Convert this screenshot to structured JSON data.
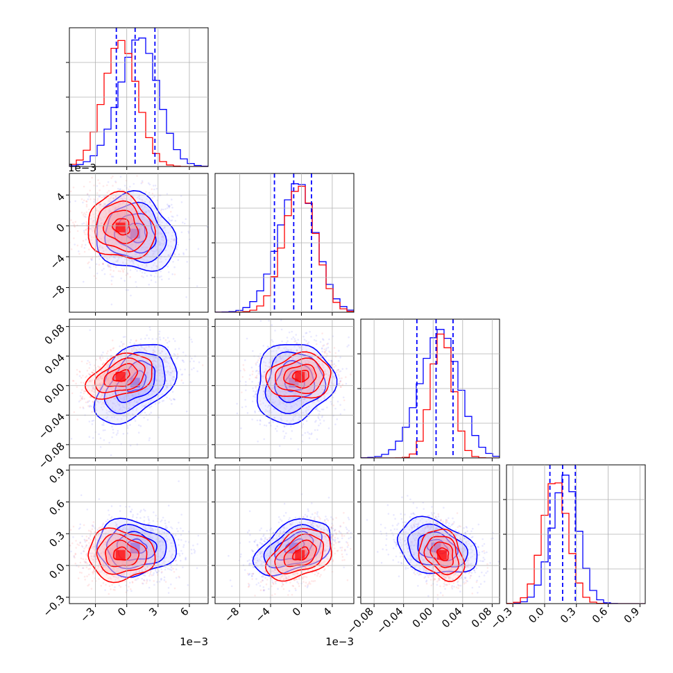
{
  "chart_data": {
    "type": "scatter",
    "title": "",
    "grid": true,
    "series": [
      {
        "color": "#0000ff"
      },
      {
        "color": "#ff0000"
      }
    ],
    "params": [
      {
        "tick_values": [
          -0.003,
          0,
          0.003,
          0.006
        ],
        "tick_labels": [
          "−3",
          "0",
          "3",
          "6"
        ],
        "range": [
          -0.0055,
          0.0078
        ],
        "offset_label": "1e−3",
        "mean_blue": 0.0008,
        "sd_blue": 0.0019,
        "mean_red": -0.0006,
        "sd_red": 0.0016,
        "quantiles": [
          -0.001,
          0.0008,
          0.0027
        ]
      },
      {
        "tick_values": [
          -0.008,
          -0.004,
          0,
          0.004
        ],
        "tick_labels": [
          "−8",
          "−4",
          "0",
          "4"
        ],
        "range": [
          -0.0112,
          0.0068
        ],
        "offset_label": "1e−3",
        "mean_blue": -0.001,
        "sd_blue": 0.0025,
        "mean_red": -0.0002,
        "sd_red": 0.0021,
        "quantiles": [
          -0.0035,
          -0.001,
          0.0013
        ]
      },
      {
        "tick_values": [
          -0.08,
          -0.04,
          0,
          0.04,
          0.08
        ],
        "tick_labels": [
          "−0.08",
          "−0.04",
          "0.00",
          "0.04",
          "0.08"
        ],
        "range": [
          -0.098,
          0.09
        ],
        "offset_label": "",
        "mean_blue": 0.004,
        "sd_blue": 0.027,
        "mean_red": 0.012,
        "sd_red": 0.015,
        "quantiles": [
          -0.022,
          0.004,
          0.027
        ]
      },
      {
        "tick_values": [
          -0.3,
          0,
          0.3,
          0.6,
          0.9
        ],
        "tick_labels": [
          "−0.3",
          "0.0",
          "0.3",
          "0.6",
          "0.9"
        ],
        "range": [
          -0.36,
          0.95
        ],
        "offset_label": "",
        "mean_blue": 0.17,
        "sd_blue": 0.13,
        "mean_red": 0.1,
        "sd_red": 0.12,
        "quantiles": [
          0.05,
          0.17,
          0.29
        ]
      }
    ],
    "correlations": {
      "1-0": -0.15,
      "2-0": 0.45,
      "2-1": 0.1,
      "3-0": -0.05,
      "3-1": 0.45,
      "3-2": -0.3
    }
  }
}
